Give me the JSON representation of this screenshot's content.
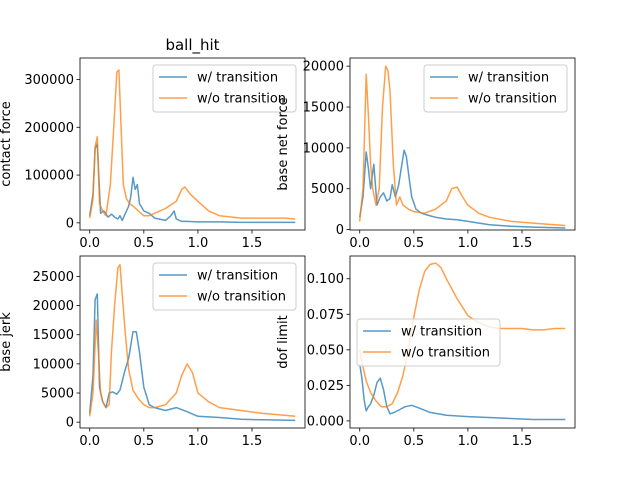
{
  "figure": {
    "title": "ball_hit"
  },
  "chart_data": [
    {
      "type": "line",
      "title": "ball_hit",
      "xlabel": "",
      "ylabel": "contact force",
      "xlim": [
        -0.09,
        1.99
      ],
      "ylim": [
        -15000,
        345000
      ],
      "xticks": [
        {
          "v": 0,
          "label": "0.0"
        },
        {
          "v": 0.5,
          "label": "0.5"
        },
        {
          "v": 1.0,
          "label": "1.0"
        },
        {
          "v": 1.5,
          "label": "1.5"
        }
      ],
      "yticks": [
        {
          "v": 0,
          "label": "0"
        },
        {
          "v": 100000,
          "label": "100000"
        },
        {
          "v": 200000,
          "label": "200000"
        },
        {
          "v": 300000,
          "label": "300000"
        }
      ],
      "legend": "top-right",
      "series": [
        {
          "name": "w/ transition",
          "color": "#1f77b4",
          "x": [
            0.0,
            0.03,
            0.05,
            0.07,
            0.1,
            0.13,
            0.17,
            0.2,
            0.23,
            0.26,
            0.28,
            0.3,
            0.33,
            0.36,
            0.38,
            0.4,
            0.42,
            0.44,
            0.46,
            0.5,
            0.55,
            0.6,
            0.7,
            0.75,
            0.78,
            0.8,
            0.85,
            0.9,
            1.0,
            1.2,
            1.4,
            1.6,
            1.9
          ],
          "y": [
            15000,
            60000,
            155000,
            165000,
            20000,
            25000,
            12000,
            18000,
            12000,
            8000,
            15000,
            5000,
            20000,
            35000,
            55000,
            95000,
            70000,
            80000,
            40000,
            25000,
            20000,
            10000,
            5000,
            15000,
            25000,
            8000,
            3000,
            3000,
            2000,
            2000,
            1000,
            1000,
            1000
          ]
        },
        {
          "name": "w/o transition",
          "color": "#ff7f0e",
          "x": [
            0.0,
            0.03,
            0.05,
            0.07,
            0.09,
            0.12,
            0.15,
            0.19,
            0.22,
            0.25,
            0.27,
            0.29,
            0.31,
            0.34,
            0.37,
            0.4,
            0.45,
            0.5,
            0.55,
            0.6,
            0.7,
            0.8,
            0.85,
            0.88,
            0.93,
            1.0,
            1.1,
            1.2,
            1.4,
            1.6,
            1.8,
            1.9
          ],
          "y": [
            10000,
            50000,
            160000,
            180000,
            40000,
            25000,
            15000,
            80000,
            190000,
            315000,
            320000,
            200000,
            80000,
            50000,
            40000,
            35000,
            25000,
            15000,
            15000,
            20000,
            30000,
            45000,
            70000,
            75000,
            60000,
            45000,
            25000,
            15000,
            10000,
            10000,
            10000,
            8000
          ]
        }
      ]
    },
    {
      "type": "line",
      "title": "",
      "xlabel": "",
      "ylabel": "base net force",
      "xlim": [
        -0.09,
        1.99
      ],
      "ylim": [
        -50,
        21000
      ],
      "xticks": [
        {
          "v": 0,
          "label": "0.0"
        },
        {
          "v": 0.5,
          "label": "0.5"
        },
        {
          "v": 1.0,
          "label": "1.0"
        },
        {
          "v": 1.5,
          "label": "1.5"
        }
      ],
      "yticks": [
        {
          "v": 0,
          "label": "0"
        },
        {
          "v": 5000,
          "label": "5000"
        },
        {
          "v": 10000,
          "label": "10000"
        },
        {
          "v": 15000,
          "label": "15000"
        },
        {
          "v": 20000,
          "label": "20000"
        }
      ],
      "legend": "top-right",
      "series": [
        {
          "name": "w/ transition",
          "color": "#1f77b4",
          "x": [
            0.0,
            0.03,
            0.06,
            0.08,
            0.1,
            0.13,
            0.16,
            0.19,
            0.22,
            0.25,
            0.28,
            0.3,
            0.33,
            0.36,
            0.39,
            0.41,
            0.43,
            0.45,
            0.48,
            0.52,
            0.57,
            0.62,
            0.7,
            0.8,
            0.9,
            1.0,
            1.2,
            1.4,
            1.6,
            1.9
          ],
          "y": [
            1500,
            4000,
            9500,
            7500,
            5000,
            8000,
            3000,
            4000,
            4500,
            3500,
            3800,
            5500,
            4000,
            5500,
            8000,
            9700,
            9000,
            7000,
            4000,
            2500,
            2000,
            1800,
            1500,
            1300,
            1200,
            1000,
            600,
            400,
            300,
            200
          ]
        },
        {
          "name": "w/o transition",
          "color": "#ff7f0e",
          "x": [
            0.0,
            0.03,
            0.06,
            0.08,
            0.1,
            0.12,
            0.15,
            0.18,
            0.21,
            0.24,
            0.26,
            0.28,
            0.31,
            0.34,
            0.37,
            0.4,
            0.45,
            0.5,
            0.6,
            0.7,
            0.8,
            0.85,
            0.9,
            0.95,
            1.0,
            1.1,
            1.2,
            1.4,
            1.6,
            1.8,
            1.9
          ],
          "y": [
            1000,
            5000,
            19000,
            14000,
            8000,
            5000,
            3000,
            5000,
            15000,
            20000,
            19500,
            17000,
            8000,
            3000,
            4000,
            3000,
            2500,
            2200,
            2000,
            2500,
            3500,
            5000,
            5200,
            4000,
            3000,
            2000,
            1500,
            1000,
            800,
            600,
            500
          ]
        }
      ]
    },
    {
      "type": "line",
      "title": "",
      "xlabel": "",
      "ylabel": "base jerk",
      "xlim": [
        -0.09,
        1.99
      ],
      "ylim": [
        -1000,
        28500
      ],
      "xticks": [
        {
          "v": 0,
          "label": "0.0"
        },
        {
          "v": 0.5,
          "label": "0.5"
        },
        {
          "v": 1.0,
          "label": "1.0"
        },
        {
          "v": 1.5,
          "label": "1.5"
        }
      ],
      "yticks": [
        {
          "v": 0,
          "label": "0"
        },
        {
          "v": 5000,
          "label": "5000"
        },
        {
          "v": 10000,
          "label": "10000"
        },
        {
          "v": 15000,
          "label": "15000"
        },
        {
          "v": 20000,
          "label": "20000"
        },
        {
          "v": 25000,
          "label": "25000"
        }
      ],
      "legend": "top-right",
      "series": [
        {
          "name": "w/ transition",
          "color": "#1f77b4",
          "x": [
            0.0,
            0.03,
            0.05,
            0.07,
            0.09,
            0.12,
            0.15,
            0.18,
            0.21,
            0.25,
            0.28,
            0.32,
            0.36,
            0.4,
            0.43,
            0.46,
            0.5,
            0.55,
            0.6,
            0.7,
            0.8,
            0.9,
            1.0,
            1.2,
            1.4,
            1.6,
            1.9
          ],
          "y": [
            1500,
            8000,
            21000,
            22000,
            6000,
            3500,
            2500,
            5000,
            5200,
            4800,
            5500,
            8500,
            11000,
            15500,
            15500,
            12000,
            6000,
            3000,
            2500,
            2000,
            2500,
            1800,
            1000,
            800,
            500,
            400,
            300
          ]
        },
        {
          "name": "w/o transition",
          "color": "#ff7f0e",
          "x": [
            0.0,
            0.03,
            0.06,
            0.08,
            0.1,
            0.12,
            0.15,
            0.18,
            0.2,
            0.23,
            0.26,
            0.28,
            0.3,
            0.33,
            0.36,
            0.4,
            0.45,
            0.5,
            0.55,
            0.6,
            0.7,
            0.8,
            0.85,
            0.9,
            0.95,
            1.0,
            1.1,
            1.2,
            1.4,
            1.6,
            1.8,
            1.9
          ],
          "y": [
            1000,
            5000,
            17500,
            12000,
            5000,
            3500,
            2500,
            3000,
            12000,
            20000,
            26500,
            27000,
            22000,
            15000,
            9000,
            5500,
            4000,
            3000,
            2500,
            2500,
            3000,
            5000,
            8000,
            10000,
            8500,
            5000,
            3500,
            2500,
            2000,
            1500,
            1200,
            1000
          ]
        }
      ]
    },
    {
      "type": "line",
      "title": "",
      "xlabel": "",
      "ylabel": "dof limit",
      "xlim": [
        -0.09,
        1.99
      ],
      "ylim": [
        -0.005,
        0.116
      ],
      "xticks": [
        {
          "v": 0,
          "label": "0.0"
        },
        {
          "v": 0.5,
          "label": "0.5"
        },
        {
          "v": 1.0,
          "label": "1.0"
        },
        {
          "v": 1.5,
          "label": "1.5"
        }
      ],
      "yticks": [
        {
          "v": 0,
          "label": "0.000"
        },
        {
          "v": 0.025,
          "label": "0.025"
        },
        {
          "v": 0.05,
          "label": "0.050"
        },
        {
          "v": 0.075,
          "label": "0.075"
        },
        {
          "v": 0.1,
          "label": "0.100"
        }
      ],
      "legend": "center-left",
      "series": [
        {
          "name": "w/ transition",
          "color": "#1f77b4",
          "x": [
            0.0,
            0.02,
            0.04,
            0.06,
            0.08,
            0.1,
            0.13,
            0.16,
            0.19,
            0.22,
            0.25,
            0.28,
            0.32,
            0.37,
            0.42,
            0.48,
            0.55,
            0.65,
            0.8,
            1.0,
            1.3,
            1.6,
            1.9
          ],
          "y": [
            0.04,
            0.03,
            0.015,
            0.007,
            0.01,
            0.012,
            0.018,
            0.027,
            0.03,
            0.022,
            0.01,
            0.005,
            0.006,
            0.008,
            0.01,
            0.011,
            0.009,
            0.006,
            0.004,
            0.003,
            0.002,
            0.001,
            0.001
          ]
        },
        {
          "name": "w/o transition",
          "color": "#ff7f0e",
          "x": [
            0.0,
            0.03,
            0.06,
            0.1,
            0.15,
            0.2,
            0.25,
            0.3,
            0.35,
            0.4,
            0.45,
            0.5,
            0.55,
            0.6,
            0.65,
            0.7,
            0.75,
            0.8,
            0.9,
            1.0,
            1.1,
            1.2,
            1.3,
            1.4,
            1.5,
            1.6,
            1.7,
            1.8,
            1.9
          ],
          "y": [
            0.05,
            0.038,
            0.028,
            0.02,
            0.014,
            0.01,
            0.01,
            0.012,
            0.02,
            0.032,
            0.05,
            0.073,
            0.092,
            0.105,
            0.11,
            0.111,
            0.108,
            0.1,
            0.086,
            0.074,
            0.069,
            0.066,
            0.065,
            0.065,
            0.065,
            0.064,
            0.064,
            0.065,
            0.065
          ]
        }
      ]
    }
  ]
}
